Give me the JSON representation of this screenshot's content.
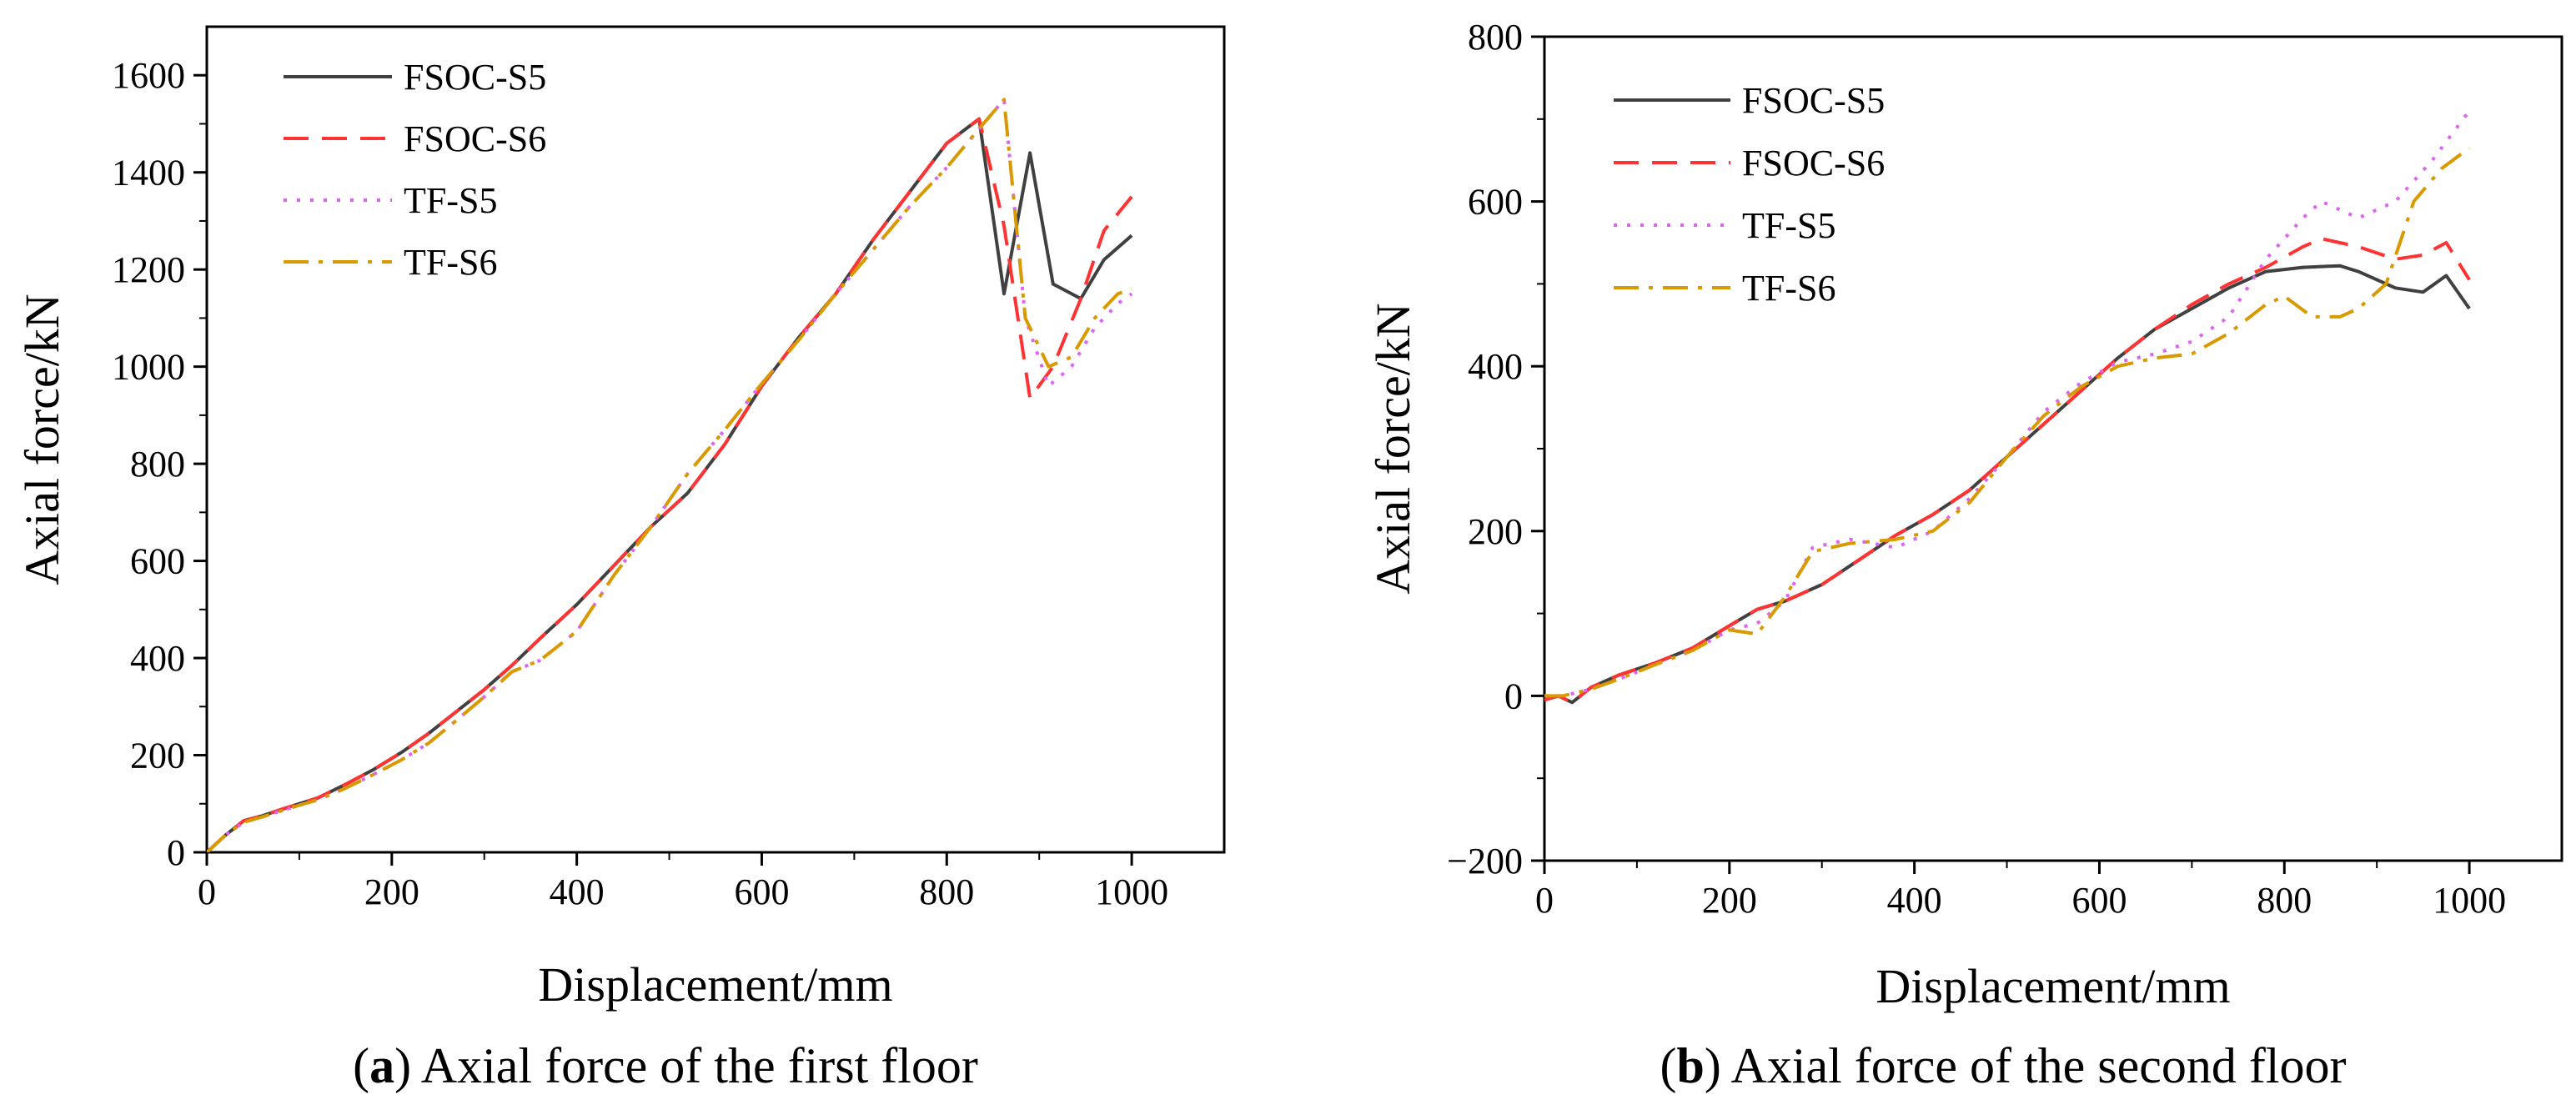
{
  "chart_data": [
    {
      "type": "line",
      "panel": "a",
      "caption_letter": "a",
      "caption_text": " Axial force of the first floor",
      "xlabel": "Displacement/mm",
      "ylabel": "Axial force/kN",
      "xlim": [
        0,
        1100
      ],
      "ylim": [
        0,
        1700
      ],
      "xticks": [
        0,
        200,
        400,
        600,
        800,
        1000
      ],
      "yticks": [
        0,
        200,
        400,
        600,
        800,
        1000,
        1200,
        1400,
        1600
      ],
      "legend_position": "top-left",
      "series": [
        {
          "name": "FSOC-S5",
          "color": "#404040",
          "dash": "solid",
          "x": [
            0,
            20,
            40,
            60,
            80,
            100,
            120,
            150,
            180,
            210,
            240,
            270,
            300,
            330,
            360,
            400,
            440,
            480,
            520,
            560,
            600,
            640,
            680,
            720,
            760,
            800,
            835,
            862,
            890,
            915,
            945,
            970,
            1000
          ],
          "y": [
            0,
            35,
            65,
            75,
            88,
            100,
            112,
            140,
            170,
            205,
            245,
            290,
            335,
            385,
            440,
            510,
            590,
            670,
            740,
            840,
            960,
            1060,
            1150,
            1260,
            1360,
            1460,
            1510,
            1150,
            1440,
            1170,
            1140,
            1220,
            1270
          ]
        },
        {
          "name": "FSOC-S6",
          "color": "#ff3333",
          "dash": "dashed",
          "x": [
            0,
            20,
            40,
            60,
            80,
            100,
            120,
            150,
            180,
            210,
            240,
            270,
            300,
            330,
            360,
            400,
            440,
            480,
            520,
            560,
            600,
            640,
            680,
            720,
            760,
            800,
            835,
            862,
            890,
            915,
            945,
            970,
            1000
          ],
          "y": [
            0,
            35,
            65,
            75,
            88,
            100,
            112,
            140,
            170,
            205,
            245,
            290,
            335,
            385,
            440,
            510,
            590,
            670,
            740,
            840,
            960,
            1060,
            1150,
            1260,
            1360,
            1460,
            1510,
            1290,
            935,
            1000,
            1140,
            1280,
            1350
          ]
        },
        {
          "name": "TF-S5",
          "color": "#dd66ee",
          "dash": "dotted",
          "x": [
            0,
            20,
            40,
            60,
            80,
            100,
            120,
            150,
            180,
            210,
            240,
            270,
            300,
            330,
            360,
            400,
            440,
            480,
            520,
            560,
            600,
            640,
            680,
            720,
            760,
            800,
            835,
            862,
            885,
            910,
            935,
            960,
            985,
            1000
          ],
          "y": [
            0,
            35,
            62,
            73,
            85,
            97,
            108,
            132,
            160,
            190,
            225,
            272,
            320,
            372,
            395,
            455,
            570,
            670,
            780,
            870,
            965,
            1055,
            1150,
            1240,
            1330,
            1410,
            1490,
            1550,
            1100,
            960,
            1000,
            1080,
            1130,
            1150
          ]
        },
        {
          "name": "TF-S6",
          "color": "#d99a00",
          "dash": "dashdot",
          "x": [
            0,
            20,
            40,
            60,
            80,
            100,
            120,
            150,
            180,
            210,
            240,
            270,
            300,
            330,
            360,
            400,
            440,
            480,
            520,
            560,
            600,
            640,
            680,
            720,
            760,
            800,
            835,
            862,
            885,
            910,
            935,
            960,
            985,
            1000
          ],
          "y": [
            0,
            35,
            62,
            73,
            85,
            97,
            108,
            132,
            160,
            190,
            225,
            272,
            320,
            372,
            395,
            455,
            570,
            670,
            780,
            870,
            965,
            1055,
            1150,
            1240,
            1330,
            1410,
            1490,
            1550,
            1100,
            1000,
            1020,
            1100,
            1150,
            1160
          ]
        }
      ]
    },
    {
      "type": "line",
      "panel": "b",
      "caption_letter": "b",
      "caption_text": " Axial force of the second floor",
      "xlabel": "Displacement/mm",
      "ylabel": "Axial force/kN",
      "xlim": [
        0,
        1100
      ],
      "ylim": [
        -200,
        800
      ],
      "xticks": [
        0,
        200,
        400,
        600,
        800,
        1000
      ],
      "yticks": [
        -200,
        0,
        200,
        400,
        600,
        800
      ],
      "ytick_labels": [
        "−200",
        "0",
        "200",
        "400",
        "600",
        "800"
      ],
      "legend_position": "top-left",
      "series": [
        {
          "name": "FSOC-S5",
          "color": "#404040",
          "dash": "solid",
          "x": [
            0,
            15,
            30,
            50,
            80,
            120,
            160,
            200,
            230,
            260,
            300,
            340,
            380,
            420,
            460,
            500,
            540,
            580,
            620,
            660,
            700,
            740,
            780,
            820,
            860,
            880,
            920,
            950,
            975,
            1000
          ],
          "y": [
            -5,
            0,
            -8,
            10,
            25,
            40,
            58,
            85,
            105,
            115,
            135,
            165,
            195,
            220,
            250,
            290,
            330,
            370,
            410,
            445,
            470,
            495,
            515,
            520,
            522,
            515,
            495,
            490,
            510,
            470
          ]
        },
        {
          "name": "FSOC-S6",
          "color": "#ff3333",
          "dash": "dashed",
          "x": [
            0,
            15,
            30,
            50,
            80,
            120,
            160,
            200,
            230,
            260,
            300,
            340,
            380,
            420,
            460,
            500,
            540,
            580,
            620,
            660,
            700,
            740,
            780,
            820,
            840,
            880,
            920,
            950,
            975,
            1000
          ],
          "y": [
            -5,
            0,
            -8,
            10,
            25,
            40,
            58,
            85,
            105,
            115,
            135,
            165,
            195,
            220,
            250,
            290,
            330,
            370,
            410,
            445,
            475,
            500,
            520,
            545,
            555,
            545,
            530,
            535,
            550,
            505
          ]
        },
        {
          "name": "TF-S5",
          "color": "#dd66ee",
          "dash": "dotted",
          "x": [
            0,
            20,
            50,
            80,
            120,
            160,
            200,
            230,
            260,
            290,
            330,
            380,
            420,
            460,
            500,
            540,
            580,
            620,
            660,
            700,
            740,
            780,
            820,
            840,
            880,
            920,
            960,
            1000
          ],
          "y": [
            0,
            0,
            8,
            20,
            38,
            55,
            80,
            88,
            115,
            180,
            190,
            180,
            200,
            240,
            290,
            345,
            380,
            405,
            415,
            430,
            460,
            530,
            580,
            600,
            580,
            600,
            650,
            710
          ]
        },
        {
          "name": "TF-S6",
          "color": "#d99a00",
          "dash": "dashdot",
          "x": [
            0,
            20,
            50,
            80,
            120,
            160,
            200,
            230,
            260,
            290,
            330,
            380,
            420,
            460,
            500,
            540,
            580,
            620,
            660,
            700,
            740,
            780,
            800,
            830,
            860,
            880,
            910,
            940,
            970,
            1000
          ],
          "y": [
            0,
            0,
            8,
            20,
            38,
            55,
            80,
            75,
            120,
            175,
            185,
            190,
            200,
            235,
            290,
            340,
            375,
            400,
            410,
            415,
            440,
            475,
            485,
            460,
            460,
            470,
            500,
            600,
            640,
            665
          ]
        }
      ]
    }
  ]
}
